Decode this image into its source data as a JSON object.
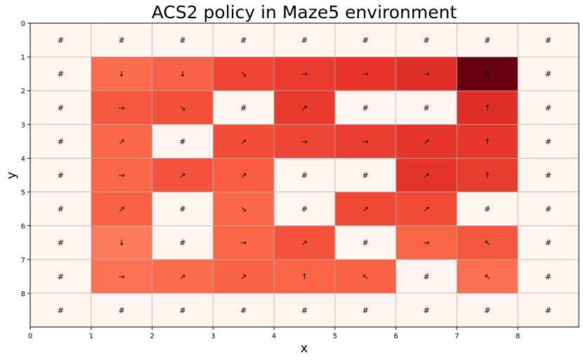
{
  "chart_data": {
    "type": "heatmap",
    "title": "ACS2 policy in Maze5 environment",
    "xlabel": "x",
    "ylabel": "y",
    "x_ticks": [
      "0",
      "1",
      "2",
      "3",
      "4",
      "5",
      "6",
      "7",
      "8"
    ],
    "y_ticks": [
      "0",
      "1",
      "2",
      "3",
      "4",
      "5",
      "6",
      "7",
      "8"
    ],
    "xlim": [
      0,
      9
    ],
    "ylim": [
      9,
      0
    ],
    "grid": true,
    "colormap": "Reds",
    "wall_color": "#fff4ef",
    "labels": [
      [
        "#",
        "#",
        "#",
        "#",
        "#",
        "#",
        "#",
        "#",
        "#"
      ],
      [
        "#",
        "↓",
        "↓",
        "↘",
        "→",
        "→",
        "→",
        "R",
        "#"
      ],
      [
        "#",
        "→",
        "↘",
        "#",
        "↗",
        "#",
        "#",
        "↑",
        "#"
      ],
      [
        "#",
        "↗",
        "#",
        "↗",
        "→",
        "→",
        "↗",
        "↑",
        "#"
      ],
      [
        "#",
        "→",
        "↗",
        "↗",
        "#",
        "#",
        "↗",
        "↑",
        "#"
      ],
      [
        "#",
        "↗",
        "#",
        "↘",
        "#",
        "↗",
        "↗",
        "#",
        "#"
      ],
      [
        "#",
        "↓",
        "#",
        "→",
        "↗",
        "#",
        "→",
        "↖",
        "#"
      ],
      [
        "#",
        "→",
        "↗",
        "↗",
        "↑",
        "↖",
        "#",
        "↖",
        "#"
      ],
      [
        "#",
        "#",
        "#",
        "#",
        "#",
        "#",
        "#",
        "#",
        "#"
      ]
    ],
    "colors": [
      [
        "#fff4ef",
        "#fff4ef",
        "#fff4ef",
        "#fff4ef",
        "#fff4ef",
        "#fff4ef",
        "#fff4ef",
        "#fff4ef",
        "#fff4ef"
      ],
      [
        "#fff4ef",
        "#fb6d4d",
        "#f86148",
        "#f14432",
        "#eb3b2f",
        "#e83429",
        "#e02f28",
        "#67000d",
        "#fff4ef"
      ],
      [
        "#fff4ef",
        "#f5573e",
        "#f4513b",
        "#fff4ef",
        "#ea3a2e",
        "#fff4ef",
        "#fff4ef",
        "#e02f29",
        "#fff4ef"
      ],
      [
        "#fff4ef",
        "#fa6849",
        "#fff4ef",
        "#f44e38",
        "#ef4534",
        "#ec3e31",
        "#e6362b",
        "#e8362c",
        "#fff4ef"
      ],
      [
        "#fff4ef",
        "#fa6648",
        "#f4523c",
        "#f75c41",
        "#fff4ef",
        "#fff4ef",
        "#e4342a",
        "#ea3b2f",
        "#fff4ef"
      ],
      [
        "#fff4ef",
        "#f96145",
        "#fff4ef",
        "#fa6849",
        "#fff4ef",
        "#f14933",
        "#f24c36",
        "#fff4ef",
        "#fff4ef"
      ],
      [
        "#fff4ef",
        "#fc7b5c",
        "#fff4ef",
        "#fa6648",
        "#f4523b",
        "#fff4ef",
        "#f96646",
        "#f4563e",
        "#fff4ef"
      ],
      [
        "#fff4ef",
        "#fc7153",
        "#fc6c4c",
        "#f86245",
        "#fa6447",
        "#f96144",
        "#fff4ef",
        "#fc6e50",
        "#fff4ef"
      ],
      [
        "#fff4ef",
        "#fff4ef",
        "#fff4ef",
        "#fff4ef",
        "#fff4ef",
        "#fff4ef",
        "#fff4ef",
        "#fff4ef",
        "#fff4ef"
      ]
    ]
  }
}
